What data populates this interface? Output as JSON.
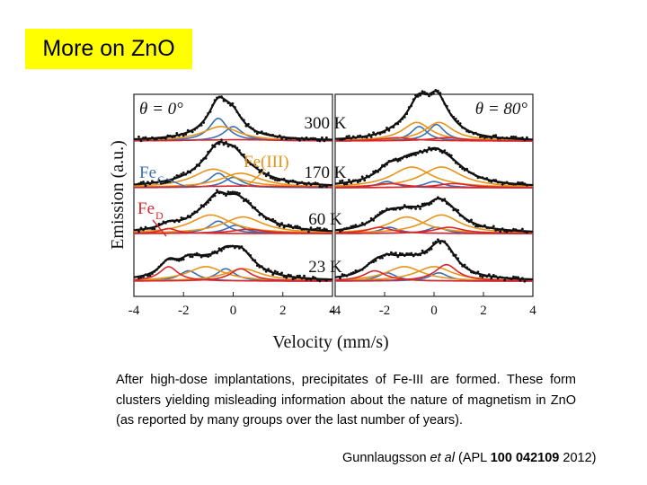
{
  "slide": {
    "title": "More on ZnO",
    "caption": "After high-dose implantations, precipitates of Fe-III are formed. These form clusters yielding misleading information about the nature of magnetism in ZnO (as reported by many groups over the last number of years).",
    "reference": {
      "authors": "Gunnlaugsson",
      "etal": "et al",
      "open": "(APL",
      "volume": "100",
      "article": "042109",
      "year": "2012)"
    }
  },
  "chart_data": {
    "type": "line",
    "xlabel": "Velocity (mm/s)",
    "ylabel": "Emission (a.u.)",
    "xlim": [
      -4,
      4
    ],
    "xticks_left": [
      "-4",
      "-2",
      "0",
      "2",
      "4"
    ],
    "xticks_right": [
      "-4",
      "-2",
      "0",
      "2",
      "4"
    ],
    "panels": [
      {
        "angle_label": "θ = 0°"
      },
      {
        "angle_label": "θ = 80°"
      }
    ],
    "temperatures": [
      "300 K",
      "170 K",
      "60 K",
      "23 K"
    ],
    "annotations": {
      "fe_c": "Fe",
      "fe_c_sub": "C",
      "fe_d": "Fe",
      "fe_d_sub": "D",
      "fe_iii": "Fe(III)"
    },
    "colors": {
      "fe_c": "#3a6fb5",
      "fe_iii": "#e8941a",
      "fe_d": "#d9262b",
      "fit": "#111111",
      "data": "#111111"
    },
    "components": {
      "left": [
        [
          {
            "c": "fe_c",
            "x0": -0.6,
            "w": 0.45,
            "a": 0.55
          },
          {
            "c": "fe_c",
            "x0": 0.0,
            "w": 0.45,
            "a": 0.35
          },
          {
            "c": "fe_iii",
            "x0": -0.5,
            "w": 0.9,
            "a": 0.35
          },
          {
            "c": "fe_d",
            "x0": 0.2,
            "w": 2.5,
            "a": 0.03
          }
        ],
        [
          {
            "c": "fe_c",
            "x0": -0.6,
            "w": 0.45,
            "a": 0.35
          },
          {
            "c": "fe_c",
            "x0": 0.0,
            "w": 0.45,
            "a": 0.25
          },
          {
            "c": "fe_iii",
            "x0": -0.8,
            "w": 1.0,
            "a": 0.45
          },
          {
            "c": "fe_iii",
            "x0": 0.3,
            "w": 1.0,
            "a": 0.35
          },
          {
            "c": "fe_d",
            "x0": 0.3,
            "w": 2.5,
            "a": 0.04
          }
        ],
        [
          {
            "c": "fe_c",
            "x0": -0.6,
            "w": 0.45,
            "a": 0.3
          },
          {
            "c": "fe_c",
            "x0": 0.1,
            "w": 0.45,
            "a": 0.2
          },
          {
            "c": "fe_iii",
            "x0": -0.9,
            "w": 1.0,
            "a": 0.45
          },
          {
            "c": "fe_iii",
            "x0": 0.4,
            "w": 1.0,
            "a": 0.4
          },
          {
            "c": "fe_d",
            "x0": -2.6,
            "w": 0.4,
            "a": 0.12
          },
          {
            "c": "fe_d",
            "x0": 0.6,
            "w": 0.8,
            "a": 0.1
          }
        ],
        [
          {
            "c": "fe_c",
            "x0": -1.8,
            "w": 0.45,
            "a": 0.25
          },
          {
            "c": "fe_c",
            "x0": -0.3,
            "w": 0.45,
            "a": 0.3
          },
          {
            "c": "fe_iii",
            "x0": -1.1,
            "w": 0.9,
            "a": 0.35
          },
          {
            "c": "fe_iii",
            "x0": 0.4,
            "w": 0.9,
            "a": 0.3
          },
          {
            "c": "fe_d",
            "x0": -2.6,
            "w": 0.45,
            "a": 0.35
          },
          {
            "c": "fe_d",
            "x0": 0.3,
            "w": 0.5,
            "a": 0.3
          }
        ]
      ],
      "right": [
        [
          {
            "c": "fe_c",
            "x0": -0.6,
            "w": 0.4,
            "a": 0.35
          },
          {
            "c": "fe_c",
            "x0": 0.1,
            "w": 0.4,
            "a": 0.4
          },
          {
            "c": "fe_iii",
            "x0": -0.7,
            "w": 0.7,
            "a": 0.45
          },
          {
            "c": "fe_iii",
            "x0": 0.2,
            "w": 0.7,
            "a": 0.45
          },
          {
            "c": "fe_d",
            "x0": -1.5,
            "w": 0.8,
            "a": 0.08
          },
          {
            "c": "fe_d",
            "x0": 0.5,
            "w": 0.8,
            "a": 0.08
          }
        ],
        [
          {
            "c": "fe_c",
            "x0": -1.9,
            "w": 0.45,
            "a": 0.15
          },
          {
            "c": "fe_c",
            "x0": 0.0,
            "w": 0.45,
            "a": 0.15
          },
          {
            "c": "fe_iii",
            "x0": -0.9,
            "w": 1.0,
            "a": 0.5
          },
          {
            "c": "fe_iii",
            "x0": 0.3,
            "w": 1.0,
            "a": 0.5
          },
          {
            "c": "fe_d",
            "x0": -1.8,
            "w": 0.8,
            "a": 0.1
          },
          {
            "c": "fe_d",
            "x0": 0.8,
            "w": 0.8,
            "a": 0.1
          }
        ],
        [
          {
            "c": "fe_c",
            "x0": -1.8,
            "w": 0.45,
            "a": 0.15
          },
          {
            "c": "fe_c",
            "x0": 0.1,
            "w": 0.45,
            "a": 0.15
          },
          {
            "c": "fe_iii",
            "x0": -1.1,
            "w": 0.9,
            "a": 0.4
          },
          {
            "c": "fe_iii",
            "x0": 0.3,
            "w": 0.9,
            "a": 0.45
          },
          {
            "c": "fe_d",
            "x0": -2.2,
            "w": 0.6,
            "a": 0.15
          },
          {
            "c": "fe_d",
            "x0": 0.6,
            "w": 0.7,
            "a": 0.15
          }
        ],
        [
          {
            "c": "fe_c",
            "x0": -1.9,
            "w": 0.45,
            "a": 0.2
          },
          {
            "c": "fe_c",
            "x0": 0.2,
            "w": 0.45,
            "a": 0.2
          },
          {
            "c": "fe_iii",
            "x0": -1.2,
            "w": 0.9,
            "a": 0.35
          },
          {
            "c": "fe_iii",
            "x0": 0.0,
            "w": 0.9,
            "a": 0.35
          },
          {
            "c": "fe_d",
            "x0": -2.4,
            "w": 0.55,
            "a": 0.25
          },
          {
            "c": "fe_d",
            "x0": 0.5,
            "w": 0.55,
            "a": 0.4
          }
        ]
      ]
    }
  }
}
